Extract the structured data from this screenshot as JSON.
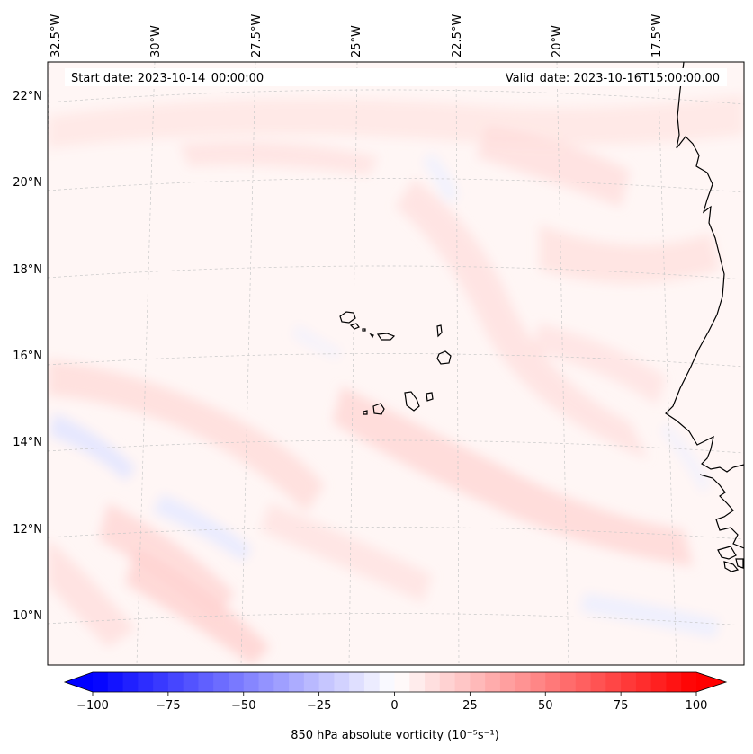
{
  "header": {
    "start_date": "Start date: 2023-10-14_00:00:00",
    "valid_date": "Valid_date: 2023-10-16T15:00:00.00"
  },
  "longitude_labels": [
    "32.5°W",
    "30°W",
    "27.5°W",
    "25°W",
    "22.5°W",
    "20°W",
    "17.5°W"
  ],
  "latitude_labels": [
    "22°N",
    "20°N",
    "18°N",
    "16°N",
    "14°N",
    "12°N",
    "10°N"
  ],
  "colorbar": {
    "ticks": [
      "−100",
      "−75",
      "−50",
      "−25",
      "0",
      "25",
      "50",
      "75",
      "100"
    ],
    "min": -100,
    "max": 100,
    "step": 5,
    "label": "850 hPa absolute vorticity (10⁻⁵s⁻¹)",
    "colors": {
      "negative": "#0000ff",
      "neutral": "#ffffff",
      "positive": "#ff0000"
    }
  }
}
